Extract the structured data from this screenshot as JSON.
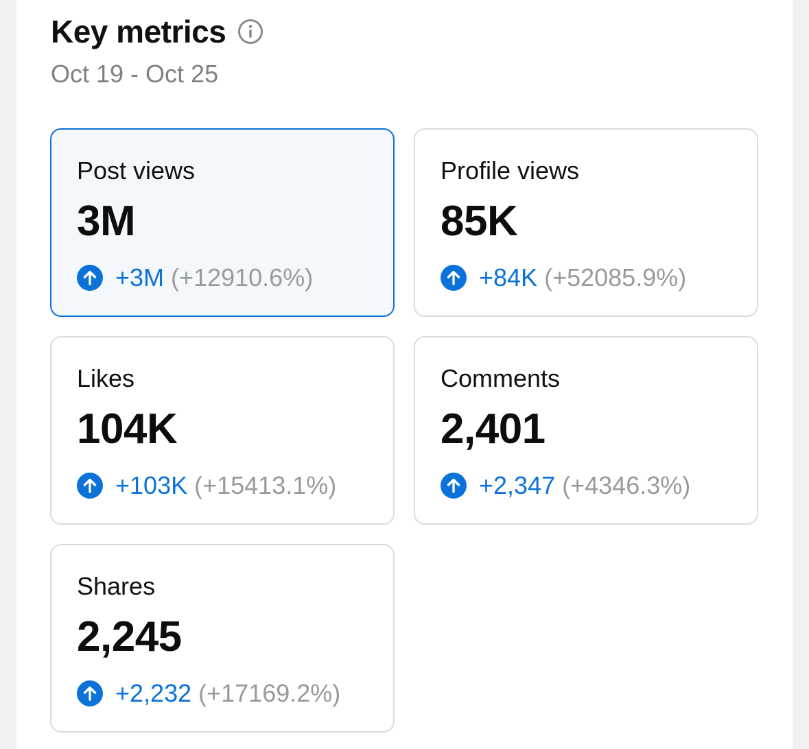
{
  "header": {
    "title": "Key metrics",
    "date_range": "Oct 19 - Oct 25"
  },
  "colors": {
    "accent": "#0a72d9",
    "muted": "#9a9a9a",
    "selected_bg": "#f4f8fc",
    "border": "#dcdcdc"
  },
  "icons": {
    "info": "info-icon",
    "trend": "arrow-up-circle-icon"
  },
  "metrics": [
    {
      "label": "Post views",
      "value": "3M",
      "delta": "+3M",
      "percent": "(+12910.6%)",
      "selected": true
    },
    {
      "label": "Profile views",
      "value": "85K",
      "delta": "+84K",
      "percent": "(+52085.9%)",
      "selected": false
    },
    {
      "label": "Likes",
      "value": "104K",
      "delta": "+103K",
      "percent": "(+15413.1%)",
      "selected": false
    },
    {
      "label": "Comments",
      "value": "2,401",
      "delta": "+2,347",
      "percent": "(+4346.3%)",
      "selected": false
    },
    {
      "label": "Shares",
      "value": "2,245",
      "delta": "+2,232",
      "percent": "(+17169.2%)",
      "selected": false
    }
  ]
}
